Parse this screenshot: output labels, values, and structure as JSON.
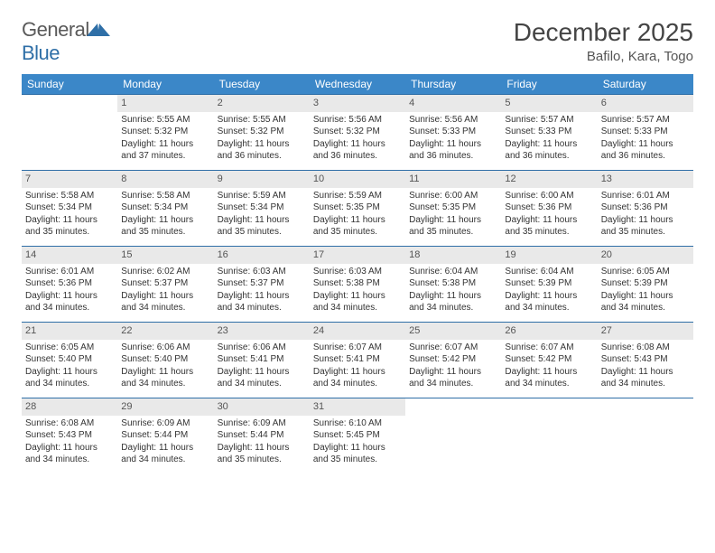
{
  "logo": {
    "part1": "General",
    "part2": "Blue"
  },
  "title": "December 2025",
  "location": "Bafilo, Kara, Togo",
  "colors": {
    "header_bg": "#3b87c8",
    "header_text": "#ffffff",
    "border": "#2f6fa7",
    "daynum_bg": "#e9e9e9",
    "text": "#333333"
  },
  "weekdays": [
    "Sunday",
    "Monday",
    "Tuesday",
    "Wednesday",
    "Thursday",
    "Friday",
    "Saturday"
  ],
  "weeks": [
    [
      {
        "n": "",
        "sr": "",
        "ss": "",
        "dl": ""
      },
      {
        "n": "1",
        "sr": "Sunrise: 5:55 AM",
        "ss": "Sunset: 5:32 PM",
        "dl": "Daylight: 11 hours and 37 minutes."
      },
      {
        "n": "2",
        "sr": "Sunrise: 5:55 AM",
        "ss": "Sunset: 5:32 PM",
        "dl": "Daylight: 11 hours and 36 minutes."
      },
      {
        "n": "3",
        "sr": "Sunrise: 5:56 AM",
        "ss": "Sunset: 5:32 PM",
        "dl": "Daylight: 11 hours and 36 minutes."
      },
      {
        "n": "4",
        "sr": "Sunrise: 5:56 AM",
        "ss": "Sunset: 5:33 PM",
        "dl": "Daylight: 11 hours and 36 minutes."
      },
      {
        "n": "5",
        "sr": "Sunrise: 5:57 AM",
        "ss": "Sunset: 5:33 PM",
        "dl": "Daylight: 11 hours and 36 minutes."
      },
      {
        "n": "6",
        "sr": "Sunrise: 5:57 AM",
        "ss": "Sunset: 5:33 PM",
        "dl": "Daylight: 11 hours and 36 minutes."
      }
    ],
    [
      {
        "n": "7",
        "sr": "Sunrise: 5:58 AM",
        "ss": "Sunset: 5:34 PM",
        "dl": "Daylight: 11 hours and 35 minutes."
      },
      {
        "n": "8",
        "sr": "Sunrise: 5:58 AM",
        "ss": "Sunset: 5:34 PM",
        "dl": "Daylight: 11 hours and 35 minutes."
      },
      {
        "n": "9",
        "sr": "Sunrise: 5:59 AM",
        "ss": "Sunset: 5:34 PM",
        "dl": "Daylight: 11 hours and 35 minutes."
      },
      {
        "n": "10",
        "sr": "Sunrise: 5:59 AM",
        "ss": "Sunset: 5:35 PM",
        "dl": "Daylight: 11 hours and 35 minutes."
      },
      {
        "n": "11",
        "sr": "Sunrise: 6:00 AM",
        "ss": "Sunset: 5:35 PM",
        "dl": "Daylight: 11 hours and 35 minutes."
      },
      {
        "n": "12",
        "sr": "Sunrise: 6:00 AM",
        "ss": "Sunset: 5:36 PM",
        "dl": "Daylight: 11 hours and 35 minutes."
      },
      {
        "n": "13",
        "sr": "Sunrise: 6:01 AM",
        "ss": "Sunset: 5:36 PM",
        "dl": "Daylight: 11 hours and 35 minutes."
      }
    ],
    [
      {
        "n": "14",
        "sr": "Sunrise: 6:01 AM",
        "ss": "Sunset: 5:36 PM",
        "dl": "Daylight: 11 hours and 34 minutes."
      },
      {
        "n": "15",
        "sr": "Sunrise: 6:02 AM",
        "ss": "Sunset: 5:37 PM",
        "dl": "Daylight: 11 hours and 34 minutes."
      },
      {
        "n": "16",
        "sr": "Sunrise: 6:03 AM",
        "ss": "Sunset: 5:37 PM",
        "dl": "Daylight: 11 hours and 34 minutes."
      },
      {
        "n": "17",
        "sr": "Sunrise: 6:03 AM",
        "ss": "Sunset: 5:38 PM",
        "dl": "Daylight: 11 hours and 34 minutes."
      },
      {
        "n": "18",
        "sr": "Sunrise: 6:04 AM",
        "ss": "Sunset: 5:38 PM",
        "dl": "Daylight: 11 hours and 34 minutes."
      },
      {
        "n": "19",
        "sr": "Sunrise: 6:04 AM",
        "ss": "Sunset: 5:39 PM",
        "dl": "Daylight: 11 hours and 34 minutes."
      },
      {
        "n": "20",
        "sr": "Sunrise: 6:05 AM",
        "ss": "Sunset: 5:39 PM",
        "dl": "Daylight: 11 hours and 34 minutes."
      }
    ],
    [
      {
        "n": "21",
        "sr": "Sunrise: 6:05 AM",
        "ss": "Sunset: 5:40 PM",
        "dl": "Daylight: 11 hours and 34 minutes."
      },
      {
        "n": "22",
        "sr": "Sunrise: 6:06 AM",
        "ss": "Sunset: 5:40 PM",
        "dl": "Daylight: 11 hours and 34 minutes."
      },
      {
        "n": "23",
        "sr": "Sunrise: 6:06 AM",
        "ss": "Sunset: 5:41 PM",
        "dl": "Daylight: 11 hours and 34 minutes."
      },
      {
        "n": "24",
        "sr": "Sunrise: 6:07 AM",
        "ss": "Sunset: 5:41 PM",
        "dl": "Daylight: 11 hours and 34 minutes."
      },
      {
        "n": "25",
        "sr": "Sunrise: 6:07 AM",
        "ss": "Sunset: 5:42 PM",
        "dl": "Daylight: 11 hours and 34 minutes."
      },
      {
        "n": "26",
        "sr": "Sunrise: 6:07 AM",
        "ss": "Sunset: 5:42 PM",
        "dl": "Daylight: 11 hours and 34 minutes."
      },
      {
        "n": "27",
        "sr": "Sunrise: 6:08 AM",
        "ss": "Sunset: 5:43 PM",
        "dl": "Daylight: 11 hours and 34 minutes."
      }
    ],
    [
      {
        "n": "28",
        "sr": "Sunrise: 6:08 AM",
        "ss": "Sunset: 5:43 PM",
        "dl": "Daylight: 11 hours and 34 minutes."
      },
      {
        "n": "29",
        "sr": "Sunrise: 6:09 AM",
        "ss": "Sunset: 5:44 PM",
        "dl": "Daylight: 11 hours and 34 minutes."
      },
      {
        "n": "30",
        "sr": "Sunrise: 6:09 AM",
        "ss": "Sunset: 5:44 PM",
        "dl": "Daylight: 11 hours and 35 minutes."
      },
      {
        "n": "31",
        "sr": "Sunrise: 6:10 AM",
        "ss": "Sunset: 5:45 PM",
        "dl": "Daylight: 11 hours and 35 minutes."
      },
      {
        "n": "",
        "sr": "",
        "ss": "",
        "dl": ""
      },
      {
        "n": "",
        "sr": "",
        "ss": "",
        "dl": ""
      },
      {
        "n": "",
        "sr": "",
        "ss": "",
        "dl": ""
      }
    ]
  ]
}
